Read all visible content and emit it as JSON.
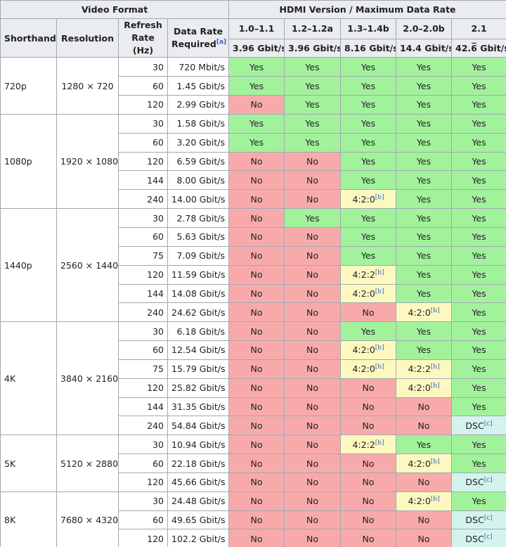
{
  "header": {
    "video_format": "Video Format",
    "hdmi": "HDMI Version / Maximum Data Rate",
    "shorthand": "Shorthand",
    "resolution": "Resolution",
    "refresh": "Refresh Rate (Hz)",
    "data_rate": {
      "text": "Data Rate Required",
      "note": "[a]"
    },
    "versions": [
      {
        "version": "1.0–1.1",
        "rate": "3.96 Gbit/s"
      },
      {
        "version": "1.2–1.2a",
        "rate": "3.96 Gbit/s"
      },
      {
        "version": "1.3–1.4b",
        "rate": "8.16 Gbit/s"
      },
      {
        "version": "2.0–2.0b",
        "rate": "14.4 Gbit/s"
      },
      {
        "version": "2.1",
        "rate": "42.6̅ Gbit/s"
      }
    ]
  },
  "cell_colors": {
    "Yes": "#a2f29c",
    "No": "#f8aaaa",
    "4:2:0": "#fdf8c0",
    "4:2:2": "#fdf8c0",
    "DSC": "#d3f3ec"
  },
  "groups": [
    {
      "shorthand": "720p",
      "resolution": "1280 × 720",
      "rows": [
        {
          "hz": "30",
          "rate": "720 Mbit/s",
          "cells": [
            "Yes",
            "Yes",
            "Yes",
            "Yes",
            "Yes"
          ]
        },
        {
          "hz": "60",
          "rate": "1.45 Gbit/s",
          "cells": [
            "Yes",
            "Yes",
            "Yes",
            "Yes",
            "Yes"
          ]
        },
        {
          "hz": "120",
          "rate": "2.99 Gbit/s",
          "cells": [
            "No",
            "Yes",
            "Yes",
            "Yes",
            "Yes"
          ]
        }
      ]
    },
    {
      "shorthand": "1080p",
      "resolution": "1920 × 1080",
      "rows": [
        {
          "hz": "30",
          "rate": "1.58 Gbit/s",
          "cells": [
            "Yes",
            "Yes",
            "Yes",
            "Yes",
            "Yes"
          ]
        },
        {
          "hz": "60",
          "rate": "3.20 Gbit/s",
          "cells": [
            "Yes",
            "Yes",
            "Yes",
            "Yes",
            "Yes"
          ]
        },
        {
          "hz": "120",
          "rate": "6.59 Gbit/s",
          "cells": [
            "No",
            "No",
            "Yes",
            "Yes",
            "Yes"
          ]
        },
        {
          "hz": "144",
          "rate": "8.00 Gbit/s",
          "cells": [
            "No",
            "No",
            "Yes",
            "Yes",
            "Yes"
          ]
        },
        {
          "hz": "240",
          "rate": "14.00 Gbit/s",
          "cells": [
            "No",
            "No",
            {
              "text": "4:2:0",
              "note": "[b]"
            },
            "Yes",
            "Yes"
          ]
        }
      ]
    },
    {
      "shorthand": "1440p",
      "resolution": "2560 × 1440",
      "rows": [
        {
          "hz": "30",
          "rate": "2.78 Gbit/s",
          "cells": [
            "No",
            "Yes",
            "Yes",
            "Yes",
            "Yes"
          ]
        },
        {
          "hz": "60",
          "rate": "5.63 Gbit/s",
          "cells": [
            "No",
            "No",
            "Yes",
            "Yes",
            "Yes"
          ]
        },
        {
          "hz": "75",
          "rate": "7.09 Gbit/s",
          "cells": [
            "No",
            "No",
            "Yes",
            "Yes",
            "Yes"
          ]
        },
        {
          "hz": "120",
          "rate": "11.59 Gbit/s",
          "cells": [
            "No",
            "No",
            {
              "text": "4:2:2",
              "note": "[b]"
            },
            "Yes",
            "Yes"
          ]
        },
        {
          "hz": "144",
          "rate": "14.08 Gbit/s",
          "cells": [
            "No",
            "No",
            {
              "text": "4:2:0",
              "note": "[b]"
            },
            "Yes",
            "Yes"
          ]
        },
        {
          "hz": "240",
          "rate": "24.62 Gbit/s",
          "cells": [
            "No",
            "No",
            "No",
            {
              "text": "4:2:0",
              "note": "[b]"
            },
            "Yes"
          ]
        }
      ]
    },
    {
      "shorthand": "4K",
      "resolution": "3840 × 2160",
      "rows": [
        {
          "hz": "30",
          "rate": "6.18 Gbit/s",
          "cells": [
            "No",
            "No",
            "Yes",
            "Yes",
            "Yes"
          ]
        },
        {
          "hz": "60",
          "rate": "12.54 Gbit/s",
          "cells": [
            "No",
            "No",
            {
              "text": "4:2:0",
              "note": "[b]"
            },
            "Yes",
            "Yes"
          ]
        },
        {
          "hz": "75",
          "rate": "15.79 Gbit/s",
          "cells": [
            "No",
            "No",
            {
              "text": "4:2:0",
              "note": "[b]"
            },
            {
              "text": "4:2:2",
              "note": "[b]"
            },
            "Yes"
          ]
        },
        {
          "hz": "120",
          "rate": "25.82 Gbit/s",
          "cells": [
            "No",
            "No",
            "No",
            {
              "text": "4:2:0",
              "note": "[b]"
            },
            "Yes"
          ]
        },
        {
          "hz": "144",
          "rate": "31.35 Gbit/s",
          "cells": [
            "No",
            "No",
            "No",
            "No",
            "Yes"
          ]
        },
        {
          "hz": "240",
          "rate": "54.84 Gbit/s",
          "cells": [
            "No",
            "No",
            "No",
            "No",
            {
              "text": "DSC",
              "note": "[c]"
            }
          ]
        }
      ]
    },
    {
      "shorthand": "5K",
      "resolution": "5120 × 2880",
      "rows": [
        {
          "hz": "30",
          "rate": "10.94 Gbit/s",
          "cells": [
            "No",
            "No",
            {
              "text": "4:2:2",
              "note": "[b]"
            },
            "Yes",
            "Yes"
          ]
        },
        {
          "hz": "60",
          "rate": "22.18 Gbit/s",
          "cells": [
            "No",
            "No",
            "No",
            {
              "text": "4:2:0",
              "note": "[b]"
            },
            "Yes"
          ]
        },
        {
          "hz": "120",
          "rate": "45.66 Gbit/s",
          "cells": [
            "No",
            "No",
            "No",
            "No",
            {
              "text": "DSC",
              "note": "[c]"
            }
          ]
        }
      ]
    },
    {
      "shorthand": "8K",
      "resolution": "7680 × 4320",
      "rows": [
        {
          "hz": "30",
          "rate": "24.48 Gbit/s",
          "cells": [
            "No",
            "No",
            "No",
            {
              "text": "4:2:0",
              "note": "[b]"
            },
            "Yes"
          ]
        },
        {
          "hz": "60",
          "rate": "49.65 Gbit/s",
          "cells": [
            "No",
            "No",
            "No",
            "No",
            {
              "text": "DSC",
              "note": "[c]"
            }
          ]
        },
        {
          "hz": "120",
          "rate": "102.2 Gbit/s",
          "cells": [
            "No",
            "No",
            "No",
            "No",
            {
              "text": "DSC",
              "note": "[c]"
            }
          ]
        }
      ]
    }
  ]
}
